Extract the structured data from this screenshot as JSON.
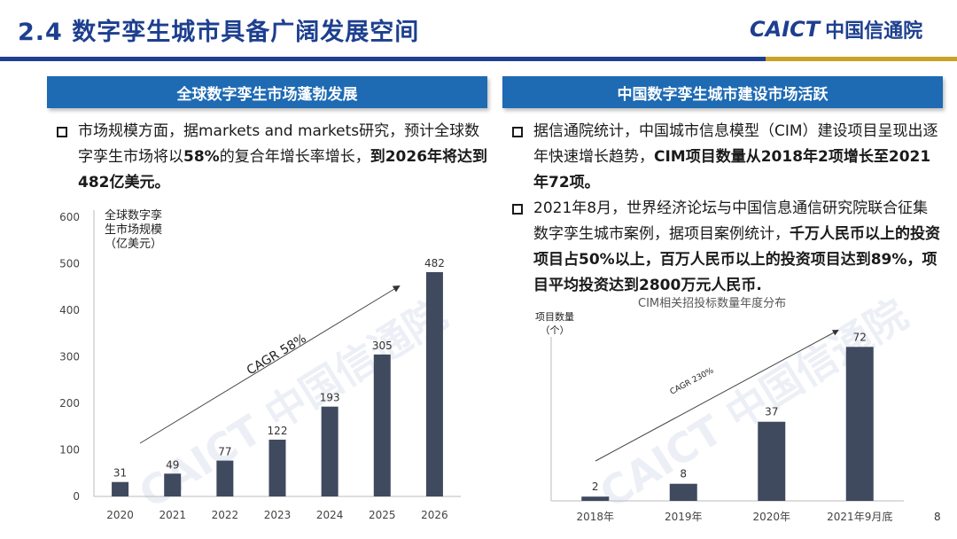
{
  "header": {
    "title": "2.4 数字孪生城市具备广阔发展空间",
    "logo_en": "CAICT",
    "logo_zh": "中国信通院"
  },
  "left": {
    "heading": "全球数字孪生市场蓬勃发展",
    "bullet_plain1": "市场规模方面，据markets and markets研究，预计全球数字孪生市场将以",
    "bullet_bold1": "58%",
    "bullet_plain2": "的复合年增长率增长，",
    "bullet_bold2": "到2026年将达到482亿美元。"
  },
  "right": {
    "heading": "中国数字孪生城市建设市场活跃",
    "b1_plain": "据信通院统计，中国城市信息模型（CIM）建设项目呈现出逐年快速增长趋势，",
    "b1_bold": "CIM项目数量从2018年2项增长至2021年72项。",
    "b2_plain": "2021年8月，世界经济论坛与中国信息通信研究院联合征集数字孪生城市案例，据项目案例统计，",
    "b2_bold": "千万人民币以上的投资项目占50%以上，百万人民币以上的投资项目达到89%，项目平均投资达到2800万元人民币."
  },
  "page_number": "8",
  "watermark_text": "CAICT 中国信通院",
  "chart_data": [
    {
      "type": "bar",
      "categories": [
        "2020",
        "2021",
        "2022",
        "2023",
        "2024",
        "2025",
        "2026"
      ],
      "values": [
        31,
        49,
        77,
        122,
        193,
        305,
        482
      ],
      "ylabel": "全球数字孪生市场规模（亿美元）",
      "ylabel_lines": [
        "全球数字孪",
        "生市场规模",
        "（亿美元）"
      ],
      "yticks": [
        0,
        100,
        200,
        300,
        400,
        500,
        600
      ],
      "ylim": [
        0,
        600
      ],
      "annotation": "CAGR 58%",
      "color": "#3f4a5f"
    },
    {
      "type": "bar",
      "title": "CIM相关招投标数量年度分布",
      "categories": [
        "2018年",
        "2019年",
        "2020年",
        "2021年9月底"
      ],
      "values": [
        2,
        8,
        37,
        72
      ],
      "ylabel": "项目数量（个）",
      "ylabel_lines": [
        "项目数量",
        "（个）"
      ],
      "ylim": [
        0,
        80
      ],
      "annotation": "CAGR 230%",
      "color": "#3f4a5f"
    }
  ]
}
